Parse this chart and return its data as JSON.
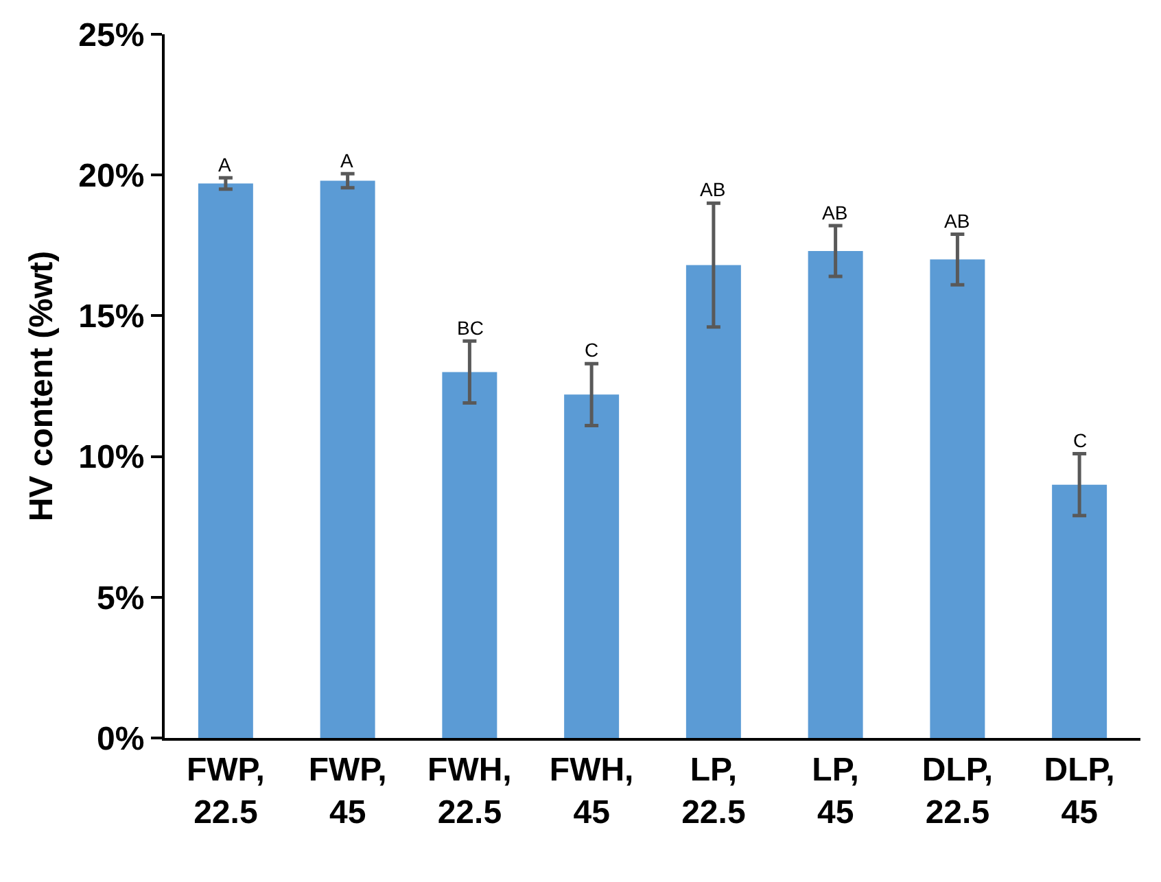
{
  "chart_data": {
    "type": "bar",
    "ylabel": "HV content (%wt)",
    "categories": [
      "FWP, 22.5",
      "FWP, 45",
      "FWH, 22.5",
      "FWH, 45",
      "LP, 22.5",
      "LP, 45",
      "DLP, 22.5",
      "DLP, 45"
    ],
    "values": [
      19.7,
      19.8,
      13.0,
      12.2,
      16.8,
      17.3,
      17.0,
      9.0
    ],
    "errors": [
      0.2,
      0.25,
      1.1,
      1.1,
      2.2,
      0.9,
      0.9,
      1.1
    ],
    "color": "#5b9bd5",
    "ylim": [
      0,
      25
    ],
    "yticks": [
      {
        "value": 0,
        "label": "0%"
      },
      {
        "value": 5,
        "label": "5%"
      },
      {
        "value": 10,
        "label": "10%"
      },
      {
        "value": 15,
        "label": "15%"
      },
      {
        "value": 20,
        "label": "20%"
      },
      {
        "value": 25,
        "label": "25%"
      }
    ],
    "annotations": [
      {
        "text": "A",
        "x": "FWP, 22.5",
        "y": 19.9
      },
      {
        "text": "A",
        "x": "FWP, 45",
        "y": 20.05
      },
      {
        "text": "BC",
        "x": "FWH, 22.5",
        "y": 14.1
      },
      {
        "text": "C",
        "x": "FWH, 45",
        "y": 13.3
      },
      {
        "text": "AB",
        "x": "LP, 22.5",
        "y": 19.0
      },
      {
        "text": "AB",
        "x": "LP, 45",
        "y": 18.2
      },
      {
        "text": "AB",
        "x": "DLP, 22.5",
        "y": 17.9
      },
      {
        "text": "C",
        "x": "DLP, 45",
        "y": 10.1
      }
    ],
    "grid": false,
    "legend": false
  }
}
